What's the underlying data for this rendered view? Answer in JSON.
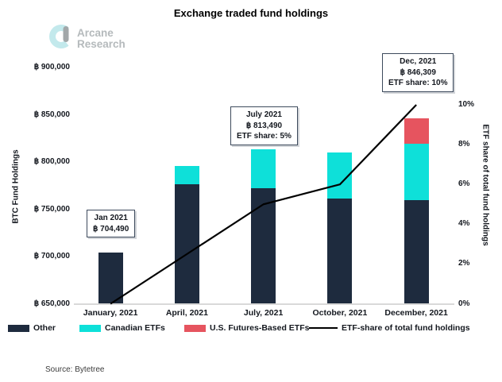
{
  "title": "Exchange traded fund holdings",
  "logo": {
    "line1": "Arcane",
    "line2": "Research"
  },
  "axes": {
    "left_title": "BTC Fund Holdings",
    "right_title": "ETF share of total fund holdings",
    "left_ticks": [
      {
        "label": "฿ 900,000",
        "value": 900000
      },
      {
        "label": "฿ 850,000",
        "value": 850000
      },
      {
        "label": "฿ 800,000",
        "value": 800000
      },
      {
        "label": "฿ 750,000",
        "value": 750000
      },
      {
        "label": "฿ 700,000",
        "value": 700000
      },
      {
        "label": "฿ 650,000",
        "value": 650000
      }
    ],
    "right_ticks": [
      {
        "label": "10%",
        "value": 10
      },
      {
        "label": "8%",
        "value": 8
      },
      {
        "label": "6%",
        "value": 6
      },
      {
        "label": "4%",
        "value": 4
      },
      {
        "label": "2%",
        "value": 2
      },
      {
        "label": "0%",
        "value": 0
      }
    ]
  },
  "chart_data": {
    "type": "bar",
    "subtype": "stacked bars with overlaid line on secondary axis",
    "title": "Exchange traded fund holdings",
    "categories": [
      "January, 2021",
      "April, 2021",
      "July, 2021",
      "October, 2021",
      "December, 2021"
    ],
    "series": [
      {
        "name": "Other",
        "color": "#1e2b3e",
        "values": [
          704490,
          776500,
          771990,
          761500,
          760000
        ]
      },
      {
        "name": "Canadian ETFs",
        "color": "#0ee0d9",
        "values": [
          0,
          19500,
          41500,
          48500,
          59000
        ]
      },
      {
        "name": "U.S. Futures-Based ETFs",
        "color": "#e6545f",
        "values": [
          0,
          0,
          0,
          0,
          27309
        ]
      }
    ],
    "stacked_totals": [
      704490,
      796000,
      813490,
      810000,
      846309
    ],
    "line_series": {
      "name": "ETF-share of total fund holdings",
      "color": "#000000",
      "values": [
        0,
        2.5,
        5,
        6,
        10
      ],
      "axis": "right"
    },
    "left_axis": {
      "label": "BTC Fund Holdings",
      "min": 650000,
      "max": 900000,
      "tick_step": 50000,
      "unit": "฿"
    },
    "right_axis": {
      "label": "ETF share of total fund holdings",
      "min": 0,
      "max": 10,
      "tick_step": 2,
      "unit": "%"
    },
    "grid": false,
    "legend_position": "bottom",
    "annotations": [
      {
        "category": "January, 2021",
        "lines": [
          "Jan 2021",
          "฿ 704,490"
        ]
      },
      {
        "category": "July, 2021",
        "lines": [
          "July 2021",
          "฿ 813,490",
          "ETF share: 5%"
        ]
      },
      {
        "category": "December, 2021",
        "lines": [
          "Dec, 2021",
          "฿ 846,309",
          "ETF share: 10%"
        ]
      }
    ]
  },
  "legend": [
    {
      "label": "Other",
      "swatch": "square",
      "color": "#1e2b3e"
    },
    {
      "label": "Canadian ETFs",
      "swatch": "square",
      "color": "#0ee0d9"
    },
    {
      "label": "U.S. Futures-Based ETFs",
      "swatch": "square",
      "color": "#e6545f"
    },
    {
      "label": "ETF-share of total fund holdings",
      "swatch": "line",
      "color": "#000000"
    }
  ],
  "source": "Source: Bytetree",
  "colors": {
    "other": "#1e2b3e",
    "canadian_etfs": "#0ee0d9",
    "us_futures_etfs": "#e6545f",
    "line": "#000000",
    "axis_baseline": "#d9d9d9",
    "logo_mark_cyan": "#c3e9ec",
    "logo_mark_gray": "#a2a7a9",
    "logo_text_gray": "#b5babc"
  }
}
